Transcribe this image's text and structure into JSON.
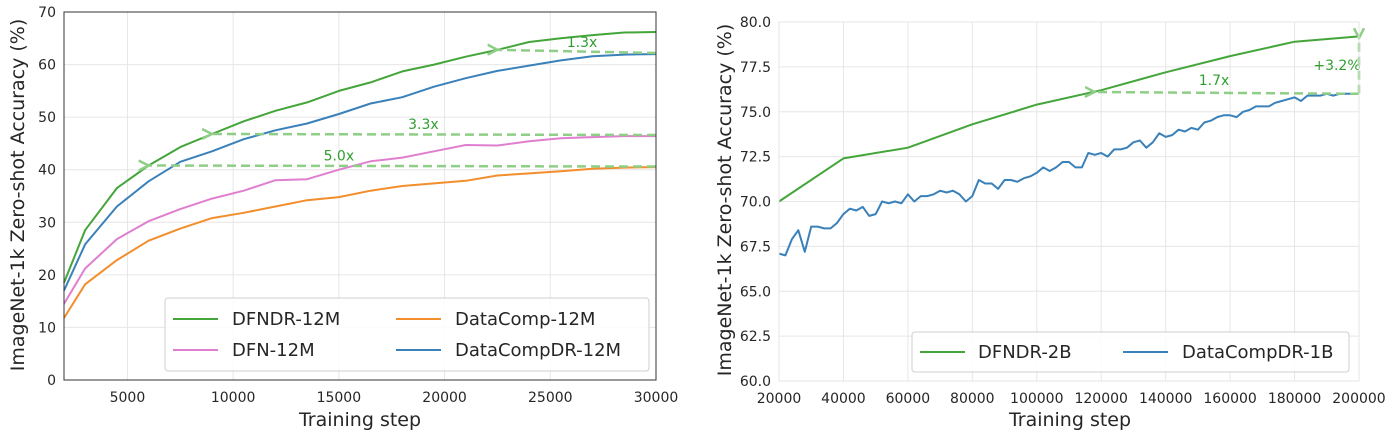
{
  "colors": {
    "dfndr": "#43a53a",
    "dfn": "#e07fd0",
    "datacomp": "#f28e2b",
    "datacompdr": "#3a81ba",
    "arrow": "#8fce86",
    "annotation": "#2f9e2f"
  },
  "chart_data": [
    {
      "type": "line",
      "title": "",
      "xlabel": "Training step",
      "ylabel": "ImageNet-1k Zero-shot Accuracy (%)",
      "xlim": [
        2000,
        30000
      ],
      "ylim": [
        0,
        70
      ],
      "xticks": [
        5000,
        10000,
        15000,
        20000,
        25000,
        30000
      ],
      "yticks": [
        0,
        10,
        20,
        30,
        40,
        50,
        60,
        70
      ],
      "grid": true,
      "legend": {
        "placement": "lower right",
        "columns": 2
      },
      "series": [
        {
          "name": "DFNDR-12M",
          "color_key": "dfndr",
          "x": [
            2000,
            3000,
            4500,
            6000,
            7500,
            9000,
            10500,
            12000,
            13500,
            15000,
            16500,
            18000,
            19500,
            21000,
            22500,
            24000,
            25500,
            27000,
            28500,
            30000
          ],
          "y": [
            18.5,
            28.5,
            36.5,
            40.8,
            44.3,
            46.8,
            49.2,
            51.2,
            52.8,
            55.0,
            56.6,
            58.7,
            60.0,
            61.5,
            62.8,
            64.3,
            65.0,
            65.6,
            66.1,
            66.2
          ]
        },
        {
          "name": "DFN-12M",
          "color_key": "dfn",
          "x": [
            2000,
            3000,
            4500,
            6000,
            7500,
            9000,
            10500,
            12000,
            13500,
            15000,
            16500,
            18000,
            19500,
            21000,
            22500,
            24000,
            25500,
            27000,
            28500,
            30000
          ],
          "y": [
            14.5,
            21.2,
            26.8,
            30.2,
            32.5,
            34.5,
            36.0,
            38.0,
            38.2,
            40.0,
            41.6,
            42.3,
            43.5,
            44.7,
            44.6,
            45.4,
            46.0,
            46.2,
            46.4,
            46.4
          ]
        },
        {
          "name": "DataComp-12M",
          "color_key": "datacomp",
          "x": [
            2000,
            3000,
            4500,
            6000,
            7500,
            9000,
            10500,
            12000,
            13500,
            15000,
            16500,
            18000,
            19500,
            21000,
            22500,
            24000,
            25500,
            27000,
            28500,
            30000
          ],
          "y": [
            11.8,
            18.2,
            22.8,
            26.5,
            28.8,
            30.8,
            31.8,
            33.0,
            34.2,
            34.8,
            36.0,
            36.9,
            37.4,
            37.9,
            38.9,
            39.3,
            39.7,
            40.2,
            40.4,
            40.5
          ]
        },
        {
          "name": "DataCompDR-12M",
          "color_key": "datacompdr",
          "x": [
            2000,
            3000,
            4500,
            6000,
            7500,
            9000,
            10500,
            12000,
            13500,
            15000,
            16500,
            18000,
            19500,
            21000,
            22500,
            24000,
            25500,
            27000,
            28500,
            30000
          ],
          "y": [
            17.0,
            25.8,
            33.0,
            37.8,
            41.5,
            43.5,
            45.8,
            47.5,
            48.8,
            50.6,
            52.6,
            53.8,
            55.8,
            57.4,
            58.8,
            59.8,
            60.8,
            61.6,
            61.9,
            62.0
          ]
        }
      ],
      "annotations": [
        {
          "text": "1.3x",
          "from": [
            30000,
            62.2
          ],
          "to": [
            22500,
            62.8
          ]
        },
        {
          "text": "3.3x",
          "from": [
            30000,
            46.6
          ],
          "to": [
            9000,
            46.8
          ]
        },
        {
          "text": "5.0x",
          "from": [
            30000,
            40.6
          ],
          "to": [
            6000,
            40.8
          ]
        }
      ]
    },
    {
      "type": "line",
      "title": "",
      "xlabel": "Training step",
      "ylabel": "ImageNet-1k Zero-shot Accuracy (%)",
      "xlim": [
        20000,
        200000
      ],
      "ylim": [
        60.0,
        80.0
      ],
      "xticks": [
        20000,
        40000,
        60000,
        80000,
        100000,
        120000,
        140000,
        160000,
        180000,
        200000
      ],
      "yticks": [
        60.0,
        62.5,
        65.0,
        67.5,
        70.0,
        72.5,
        75.0,
        77.5,
        80.0
      ],
      "grid": true,
      "legend": {
        "placement": "lower right",
        "columns": 2
      },
      "series": [
        {
          "name": "DFNDR-2B",
          "color_key": "dfndr",
          "x": [
            20000,
            40000,
            60000,
            80000,
            100000,
            120000,
            140000,
            160000,
            180000,
            200000
          ],
          "y": [
            70.0,
            72.4,
            73.0,
            74.3,
            75.4,
            76.2,
            77.2,
            78.1,
            78.9,
            79.2
          ]
        },
        {
          "name": "DataCompDR-1B",
          "color_key": "datacompdr",
          "x": [
            20000,
            22000,
            24000,
            26000,
            28000,
            30000,
            32000,
            34000,
            36000,
            38000,
            40000,
            42000,
            44000,
            46000,
            48000,
            50000,
            52000,
            54000,
            56000,
            58000,
            60000,
            62000,
            64000,
            66000,
            68000,
            70000,
            72000,
            74000,
            76000,
            78000,
            80000,
            82000,
            84000,
            86000,
            88000,
            90000,
            92000,
            94000,
            96000,
            98000,
            100000,
            102000,
            104000,
            106000,
            108000,
            110000,
            112000,
            114000,
            116000,
            118000,
            120000,
            122000,
            124000,
            126000,
            128000,
            130000,
            132000,
            134000,
            136000,
            138000,
            140000,
            142000,
            144000,
            146000,
            148000,
            150000,
            152000,
            154000,
            156000,
            158000,
            160000,
            162000,
            164000,
            166000,
            168000,
            170000,
            172000,
            174000,
            176000,
            178000,
            180000,
            182000,
            184000,
            186000,
            188000,
            190000,
            192000,
            194000,
            196000,
            198000,
            200000
          ],
          "y": [
            67.1,
            67.0,
            67.9,
            68.4,
            67.2,
            68.6,
            68.6,
            68.5,
            68.5,
            68.8,
            69.3,
            69.6,
            69.5,
            69.7,
            69.2,
            69.3,
            70.0,
            69.9,
            70.0,
            69.9,
            70.4,
            70.0,
            70.3,
            70.3,
            70.4,
            70.6,
            70.5,
            70.6,
            70.4,
            70.0,
            70.3,
            71.2,
            71.0,
            71.0,
            70.7,
            71.2,
            71.2,
            71.1,
            71.3,
            71.4,
            71.6,
            71.9,
            71.7,
            71.9,
            72.2,
            72.2,
            71.9,
            71.9,
            72.7,
            72.6,
            72.7,
            72.5,
            72.9,
            72.9,
            73.0,
            73.3,
            73.4,
            73.0,
            73.3,
            73.8,
            73.6,
            73.7,
            74.0,
            73.9,
            74.1,
            74.0,
            74.4,
            74.5,
            74.7,
            74.8,
            74.8,
            74.7,
            75.0,
            75.1,
            75.3,
            75.3,
            75.3,
            75.5,
            75.6,
            75.7,
            75.8,
            75.6,
            75.9,
            75.9,
            75.9,
            76.0,
            75.9,
            76.0,
            76.0,
            76.0,
            76.0
          ]
        }
      ],
      "annotations": [
        {
          "text": "1.7x",
          "from": [
            200000,
            76.0
          ],
          "to": [
            118000,
            76.1
          ]
        },
        {
          "text": "+3.2%",
          "from": [
            200000,
            76.0
          ],
          "to": [
            200000,
            79.1
          ]
        }
      ]
    }
  ]
}
